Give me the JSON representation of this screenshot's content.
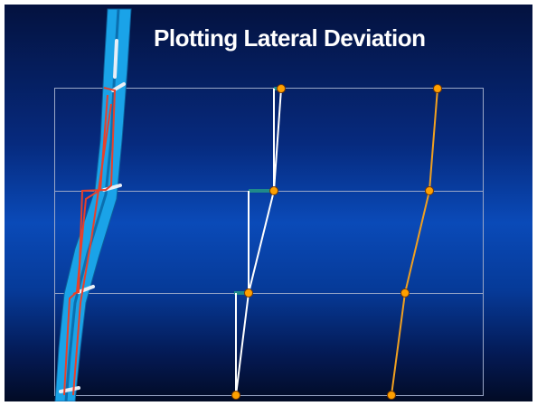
{
  "slide": {
    "title": "Plotting Lateral Deviation"
  },
  "colors": {
    "background_top": "#04123f",
    "background_mid": "#0a4ab8",
    "background_bottom": "#020b25",
    "grid": "#9aa7c7",
    "well_image": "#1aa3e8",
    "trace_red": "#e8402a",
    "construction_white": "#ffffff",
    "offset_teal": "#1f8a8a",
    "deviation_orange": "#f0a020",
    "node_fill": "#ffa000",
    "node_stroke": "#7a3a00"
  },
  "icons": [
    "well-image-strip-icon"
  ]
}
